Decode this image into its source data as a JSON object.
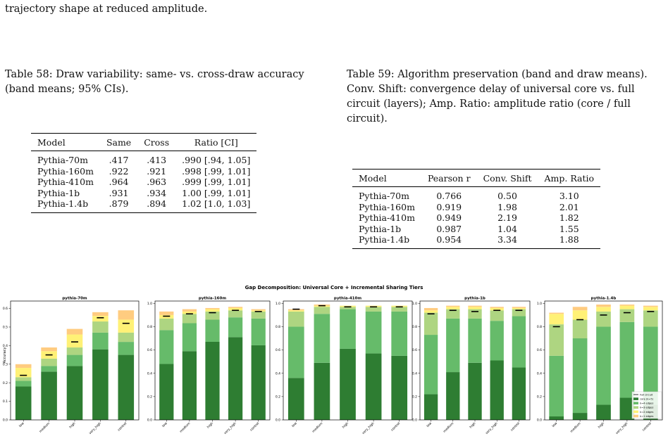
{
  "intro_text": "trajectory shape at reduced amplitude.",
  "table58": {
    "caption": "Table 58: Draw variability: same- vs. cross-draw accuracy (band means; 95% CIs).",
    "headers": [
      "Model",
      "Same",
      "Cross",
      "Ratio [CI]"
    ],
    "rows": [
      [
        "Pythia-70m",
        ".417",
        ".413",
        ".990 [.94, 1.05]"
      ],
      [
        "Pythia-160m",
        ".922",
        ".921",
        ".998 [.99, 1.01]"
      ],
      [
        "Pythia-410m",
        ".964",
        ".963",
        ".999 [.99, 1.01]"
      ],
      [
        "Pythia-1b",
        ".931",
        ".934",
        "1.00 [.99, 1.01]"
      ],
      [
        "Pythia-1.4b",
        ".879",
        ".894",
        "1.02 [1.0, 1.03]"
      ]
    ]
  },
  "table59": {
    "caption": "Table 59: Algorithm preservation (band and draw means). Conv. Shift: convergence delay of universal core vs. full circuit (layers); Amp. Ratio: amplitude ratio (core / full circuit).",
    "headers": [
      "Model",
      "Pearson r",
      "Conv. Shift",
      "Amp. Ratio"
    ],
    "rows": [
      [
        "Pythia-70m",
        "0.766",
        "0.50",
        "3.10"
      ],
      [
        "Pythia-160m",
        "0.919",
        "1.98",
        "2.01"
      ],
      [
        "Pythia-410m",
        "0.949",
        "2.19",
        "1.82"
      ],
      [
        "Pythia-1b",
        "0.987",
        "1.04",
        "1.55"
      ],
      [
        "Pythia-1.4b",
        "0.954",
        "3.34",
        "1.88"
      ]
    ]
  },
  "figure": {
    "suptitle": "Gap Decomposition: Universal Core + Incremental Sharing Tiers",
    "ylabel": "Accuracy",
    "legend": [
      "Full circuit",
      "core (k=5)",
      "k=4 edges",
      "k=3 edges",
      "k=2 edges",
      "k=1 edges"
    ]
  },
  "colors": {
    "tiers": [
      "#2e7d32",
      "#66bb6a",
      "#aed581",
      "#fff176",
      "#ffcc80"
    ],
    "full_circuit_marker": "#000000"
  },
  "chart_data": [
    {
      "type": "bar",
      "stacked": true,
      "title": "pythia-70m",
      "categories": [
        "low",
        "medium",
        "high",
        "very_high",
        "control"
      ],
      "ylim": [
        0,
        0.64
      ],
      "yticks": [
        0.0,
        0.1,
        0.2,
        0.3,
        0.4,
        0.5,
        0.6
      ],
      "series": [
        {
          "name": "core (k=5)",
          "values": [
            0.18,
            0.26,
            0.29,
            0.38,
            0.35
          ]
        },
        {
          "name": "k=4 edges",
          "values": [
            0.03,
            0.03,
            0.06,
            0.09,
            0.07
          ]
        },
        {
          "name": "k=3 edges",
          "values": [
            0.02,
            0.04,
            0.04,
            0.06,
            0.05
          ]
        },
        {
          "name": "k=2 edges",
          "values": [
            0.05,
            0.04,
            0.07,
            0.03,
            0.07
          ]
        },
        {
          "name": "k=1 edges",
          "values": [
            0.02,
            0.02,
            0.03,
            0.02,
            0.05
          ]
        }
      ],
      "full_circuit": [
        0.24,
        0.35,
        0.42,
        0.55,
        0.52
      ]
    },
    {
      "type": "bar",
      "stacked": true,
      "title": "pythia-160m",
      "categories": [
        "low",
        "medium",
        "high",
        "very_high",
        "control"
      ],
      "ylim": [
        0,
        1.02
      ],
      "yticks": [
        0.0,
        0.2,
        0.4,
        0.6,
        0.8,
        1.0
      ],
      "series": [
        {
          "name": "core (k=5)",
          "values": [
            0.48,
            0.59,
            0.67,
            0.71,
            0.64
          ]
        },
        {
          "name": "k=4 edges",
          "values": [
            0.29,
            0.24,
            0.19,
            0.17,
            0.23
          ]
        },
        {
          "name": "k=3 edges",
          "values": [
            0.1,
            0.08,
            0.07,
            0.06,
            0.06
          ]
        },
        {
          "name": "k=2 edges",
          "values": [
            0.03,
            0.02,
            0.02,
            0.02,
            0.01
          ]
        },
        {
          "name": "k=1 edges",
          "values": [
            0.03,
            0.02,
            0.01,
            0.01,
            0.01
          ]
        }
      ],
      "full_circuit": [
        0.89,
        0.91,
        0.92,
        0.94,
        0.93
      ]
    },
    {
      "type": "bar",
      "stacked": true,
      "title": "pythia-410m",
      "categories": [
        "low",
        "medium",
        "high",
        "very_high",
        "control"
      ],
      "ylim": [
        0,
        1.02
      ],
      "yticks": [
        0.0,
        0.2,
        0.4,
        0.6,
        0.8,
        1.0
      ],
      "series": [
        {
          "name": "core (k=5)",
          "values": [
            0.36,
            0.49,
            0.61,
            0.57,
            0.55
          ]
        },
        {
          "name": "k=4 edges",
          "values": [
            0.44,
            0.42,
            0.34,
            0.36,
            0.38
          ]
        },
        {
          "name": "k=3 edges",
          "values": [
            0.13,
            0.06,
            0.02,
            0.04,
            0.04
          ]
        },
        {
          "name": "k=2 edges",
          "values": [
            0.01,
            0.01,
            0.01,
            0.01,
            0.01
          ]
        },
        {
          "name": "k=1 edges",
          "values": [
            0.01,
            0.01,
            0.0,
            0.0,
            0.0
          ]
        }
      ],
      "full_circuit": [
        0.95,
        0.98,
        0.97,
        0.97,
        0.97
      ]
    },
    {
      "type": "bar",
      "stacked": true,
      "title": "pythia-1b",
      "categories": [
        "low",
        "medium",
        "high",
        "very_high",
        "control"
      ],
      "ylim": [
        0,
        1.02
      ],
      "yticks": [
        0.0,
        0.2,
        0.4,
        0.6,
        0.8,
        1.0
      ],
      "series": [
        {
          "name": "core (k=5)",
          "values": [
            0.22,
            0.41,
            0.49,
            0.51,
            0.45
          ]
        },
        {
          "name": "k=4 edges",
          "values": [
            0.51,
            0.46,
            0.38,
            0.34,
            0.44
          ]
        },
        {
          "name": "k=3 edges",
          "values": [
            0.19,
            0.08,
            0.08,
            0.09,
            0.06
          ]
        },
        {
          "name": "k=2 edges",
          "values": [
            0.02,
            0.02,
            0.02,
            0.02,
            0.01
          ]
        },
        {
          "name": "k=1 edges",
          "values": [
            0.02,
            0.01,
            0.01,
            0.01,
            0.01
          ]
        }
      ],
      "full_circuit": [
        0.91,
        0.94,
        0.93,
        0.94,
        0.94
      ]
    },
    {
      "type": "bar",
      "stacked": true,
      "title": "pythia-1.4b",
      "categories": [
        "low",
        "medium",
        "high",
        "very_high",
        "control"
      ],
      "ylim": [
        0,
        1.02
      ],
      "yticks": [
        0.0,
        0.2,
        0.4,
        0.6,
        0.8,
        1.0
      ],
      "series": [
        {
          "name": "core (k=5)",
          "values": [
            0.03,
            0.06,
            0.13,
            0.19,
            0.13
          ]
        },
        {
          "name": "k=4 edges",
          "values": [
            0.52,
            0.64,
            0.67,
            0.65,
            0.67
          ]
        },
        {
          "name": "k=3 edges",
          "values": [
            0.27,
            0.16,
            0.13,
            0.11,
            0.14
          ]
        },
        {
          "name": "k=2 edges",
          "values": [
            0.09,
            0.08,
            0.04,
            0.03,
            0.03
          ]
        },
        {
          "name": "k=1 edges",
          "values": [
            0.01,
            0.03,
            0.02,
            0.01,
            0.01
          ]
        }
      ],
      "full_circuit": [
        0.8,
        0.86,
        0.9,
        0.92,
        0.93
      ],
      "legend_position": "lower-right"
    }
  ]
}
